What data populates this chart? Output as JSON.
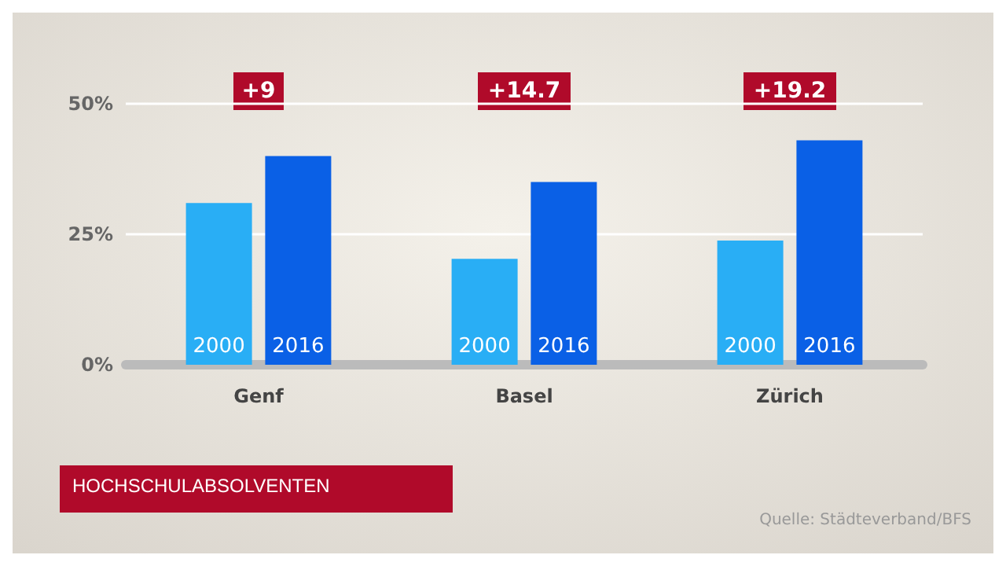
{
  "chart_data": {
    "type": "bar",
    "title": "HOCHSCHULABSOLVENTEN",
    "categories": [
      "Genf",
      "Basel",
      "Zürich"
    ],
    "series": [
      {
        "name": "2000",
        "color": "#29aef5",
        "values": [
          31,
          20.3,
          23.8
        ]
      },
      {
        "name": "2016",
        "color": "#0a60e6",
        "values": [
          40,
          35,
          43
        ]
      }
    ],
    "ylim": [
      0,
      50
    ],
    "yticks": [
      {
        "value": 0,
        "label": "0%"
      },
      {
        "value": 25,
        "label": "25%"
      },
      {
        "value": 50,
        "label": "50%"
      }
    ],
    "grid": "y",
    "legend": false,
    "annotations": [
      "+9",
      "+14.7",
      "+19.2",
      "Quelle: Städteverband/BFS"
    ]
  }
}
